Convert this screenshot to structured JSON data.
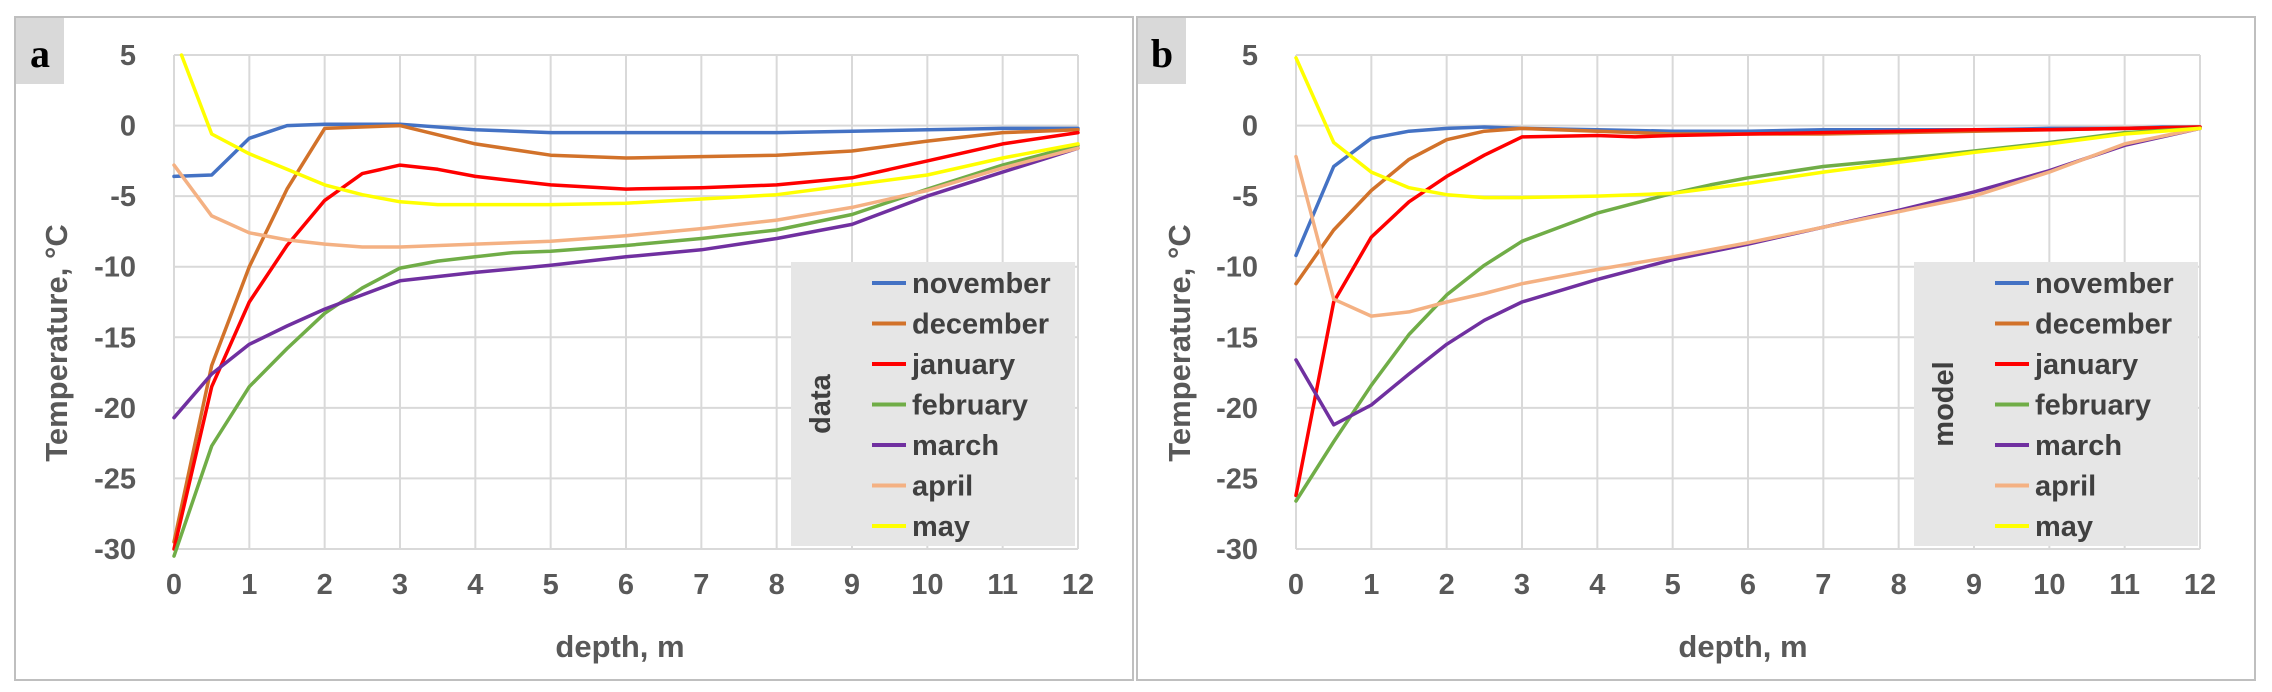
{
  "colors": {
    "november": "#4472c4",
    "december": "#d2722a",
    "january": "#ff0000",
    "february": "#70ad47",
    "march": "#7030a0",
    "april": "#f4b183",
    "may": "#ffff00"
  },
  "chart_data": [
    {
      "type": "line",
      "panel_label": "a",
      "legend_title": "data",
      "title": "",
      "xlabel": "depth, m",
      "ylabel": "Temperature, °C",
      "xlim": [
        0,
        12
      ],
      "ylim": [
        -30,
        5
      ],
      "x_ticks": [
        "0",
        "1",
        "2",
        "3",
        "4",
        "5",
        "6",
        "7",
        "8",
        "9",
        "10",
        "11",
        "12"
      ],
      "y_ticks": [
        "5",
        "0",
        "-5",
        "-10",
        "-15",
        "-20",
        "-25",
        "-30"
      ],
      "series": [
        {
          "name": "november",
          "color": "#4472c4",
          "x": [
            0,
            0.5,
            1,
            1.5,
            2,
            3,
            4,
            5,
            6,
            7,
            8,
            9,
            10,
            11,
            12
          ],
          "values": [
            -3.6,
            -3.5,
            -0.9,
            0,
            0.1,
            0.1,
            -0.3,
            -0.5,
            -0.5,
            -0.5,
            -0.5,
            -0.4,
            -0.3,
            -0.2,
            -0.2
          ]
        },
        {
          "name": "december",
          "color": "#d2722a",
          "x": [
            0,
            0.5,
            1,
            1.5,
            2,
            3,
            4,
            5,
            6,
            7,
            8,
            9,
            10,
            11,
            12
          ],
          "values": [
            -29.5,
            -17,
            -10,
            -4.5,
            -0.2,
            0,
            -1.3,
            -2.1,
            -2.3,
            -2.2,
            -2.1,
            -1.8,
            -1.1,
            -0.5,
            -0.3
          ]
        },
        {
          "name": "january",
          "color": "#ff0000",
          "x": [
            0,
            0.5,
            1,
            1.5,
            2,
            2.5,
            3,
            3.5,
            4,
            5,
            6,
            7,
            8,
            9,
            10,
            11,
            12
          ],
          "values": [
            -30,
            -18.5,
            -12.5,
            -8.5,
            -5.3,
            -3.4,
            -2.8,
            -3.1,
            -3.6,
            -4.2,
            -4.5,
            -4.4,
            -4.2,
            -3.7,
            -2.5,
            -1.3,
            -0.5
          ]
        },
        {
          "name": "february",
          "color": "#70ad47",
          "x": [
            0,
            0.5,
            1,
            1.5,
            2,
            2.5,
            3,
            3.5,
            4,
            4.5,
            5,
            6,
            7,
            8,
            9,
            10,
            11,
            12
          ],
          "values": [
            -30.5,
            -22.7,
            -18.5,
            -15.8,
            -13.3,
            -11.5,
            -10.1,
            -9.6,
            -9.3,
            -9.0,
            -8.9,
            -8.5,
            -8.0,
            -7.4,
            -6.3,
            -4.5,
            -2.8,
            -1.4
          ]
        },
        {
          "name": "march",
          "color": "#7030a0",
          "x": [
            0,
            0.5,
            1,
            1.5,
            2,
            2.5,
            3,
            4,
            5,
            6,
            7,
            8,
            9,
            10,
            11,
            12
          ],
          "values": [
            -20.7,
            -17.6,
            -15.5,
            -14.2,
            -13.0,
            -12.0,
            -11.0,
            -10.4,
            -9.9,
            -9.3,
            -8.8,
            -8.0,
            -7.0,
            -5.0,
            -3.3,
            -1.6
          ]
        },
        {
          "name": "april",
          "color": "#f4b183",
          "x": [
            0,
            0.5,
            1,
            1.5,
            2,
            2.5,
            3,
            4,
            5,
            6,
            7,
            8,
            9,
            10,
            11,
            12
          ],
          "values": [
            -2.8,
            -6.4,
            -7.6,
            -8.1,
            -8.4,
            -8.6,
            -8.6,
            -8.4,
            -8.2,
            -7.8,
            -7.3,
            -6.7,
            -5.8,
            -4.6,
            -3.0,
            -1.6
          ]
        },
        {
          "name": "may",
          "color": "#ffff00",
          "x": [
            0.1,
            0.5,
            1,
            1.5,
            2,
            2.5,
            3,
            3.5,
            4,
            5,
            6,
            7,
            8,
            9,
            10,
            11,
            12
          ],
          "values": [
            5,
            -0.6,
            -2.0,
            -3.1,
            -4.2,
            -4.9,
            -5.4,
            -5.6,
            -5.6,
            -5.6,
            -5.5,
            -5.2,
            -4.9,
            -4.2,
            -3.5,
            -2.3,
            -1.3
          ]
        }
      ]
    },
    {
      "type": "line",
      "panel_label": "b",
      "legend_title": "model",
      "title": "",
      "xlabel": "depth, m",
      "ylabel": "Temperature, °C",
      "xlim": [
        0,
        12
      ],
      "ylim": [
        -30,
        5
      ],
      "x_ticks": [
        "0",
        "1",
        "2",
        "3",
        "4",
        "5",
        "6",
        "7",
        "8",
        "9",
        "10",
        "11",
        "12"
      ],
      "y_ticks": [
        "5",
        "0",
        "-5",
        "-10",
        "-15",
        "-20",
        "-25",
        "-30"
      ],
      "series": [
        {
          "name": "november",
          "color": "#4472c4",
          "x": [
            0,
            0.5,
            1,
            1.5,
            2,
            2.5,
            3,
            4,
            5,
            6,
            7,
            8,
            9,
            10,
            11,
            11.5,
            12
          ],
          "values": [
            -9.2,
            -2.9,
            -0.9,
            -0.4,
            -0.2,
            -0.1,
            -0.2,
            -0.3,
            -0.4,
            -0.4,
            -0.3,
            -0.3,
            -0.3,
            -0.2,
            -0.2,
            -0.1,
            -0.1
          ]
        },
        {
          "name": "december",
          "color": "#d2722a",
          "x": [
            0,
            0.5,
            1,
            1.5,
            2,
            2.5,
            3,
            4,
            5,
            6,
            7,
            8,
            9,
            10,
            11,
            12
          ],
          "values": [
            -11.2,
            -7.4,
            -4.6,
            -2.4,
            -1.0,
            -0.4,
            -0.2,
            -0.4,
            -0.6,
            -0.6,
            -0.6,
            -0.5,
            -0.4,
            -0.3,
            -0.2,
            -0.1
          ]
        },
        {
          "name": "january",
          "color": "#ff0000",
          "x": [
            0,
            0.5,
            1,
            1.5,
            2,
            2.5,
            3,
            4,
            4.5,
            5,
            6,
            7,
            8,
            9,
            10,
            11,
            12
          ],
          "values": [
            -26.2,
            -12.5,
            -7.9,
            -5.4,
            -3.6,
            -2.1,
            -0.8,
            -0.7,
            -0.8,
            -0.7,
            -0.6,
            -0.5,
            -0.4,
            -0.3,
            -0.3,
            -0.2,
            -0.1
          ]
        },
        {
          "name": "february",
          "color": "#70ad47",
          "x": [
            0,
            0.5,
            1,
            1.5,
            2,
            2.5,
            3,
            4,
            5,
            5.5,
            6,
            7,
            8,
            9,
            10,
            11,
            12
          ],
          "values": [
            -26.6,
            -22.4,
            -18.4,
            -14.8,
            -12.0,
            -9.9,
            -8.2,
            -6.2,
            -4.8,
            -4.2,
            -3.7,
            -2.9,
            -2.4,
            -1.8,
            -1.2,
            -0.5,
            -0.2
          ]
        },
        {
          "name": "march",
          "color": "#7030a0",
          "x": [
            0,
            0.5,
            1,
            1.5,
            2,
            2.5,
            3,
            4,
            5,
            6,
            7,
            8,
            9,
            10,
            11,
            12
          ],
          "values": [
            -16.6,
            -21.2,
            -19.8,
            -17.6,
            -15.5,
            -13.8,
            -12.5,
            -10.9,
            -9.5,
            -8.4,
            -7.2,
            -6.0,
            -4.7,
            -3.2,
            -1.4,
            -0.2
          ]
        },
        {
          "name": "april",
          "color": "#f4b183",
          "x": [
            0,
            0.5,
            1,
            1.5,
            2,
            2.5,
            3,
            4,
            5,
            6,
            7,
            8,
            9,
            10,
            11,
            12
          ],
          "values": [
            -2.2,
            -12.3,
            -13.5,
            -13.2,
            -12.5,
            -11.9,
            -11.2,
            -10.2,
            -9.3,
            -8.3,
            -7.2,
            -6.1,
            -5.0,
            -3.3,
            -1.3,
            -0.2
          ]
        },
        {
          "name": "may",
          "color": "#ffff00",
          "x": [
            0,
            0.5,
            1,
            1.5,
            2,
            2.5,
            3,
            4,
            5,
            6,
            7,
            8,
            9,
            10,
            11,
            12
          ],
          "values": [
            4.8,
            -1.2,
            -3.3,
            -4.4,
            -4.9,
            -5.1,
            -5.1,
            -5.0,
            -4.8,
            -4.1,
            -3.3,
            -2.6,
            -1.9,
            -1.3,
            -0.6,
            -0.2
          ]
        }
      ]
    }
  ]
}
